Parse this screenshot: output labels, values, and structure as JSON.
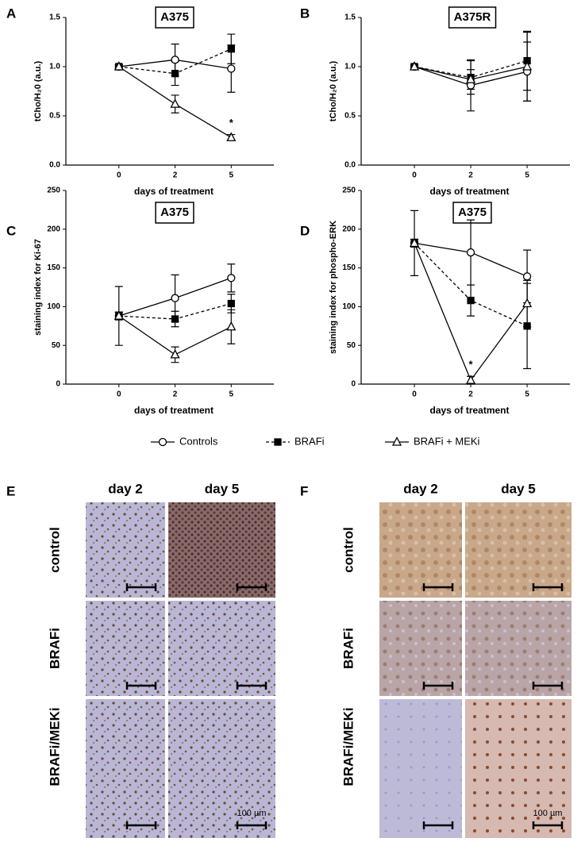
{
  "chart_data": [
    {
      "type": "line",
      "panel": "A",
      "title": "A375",
      "x_label": "days of treatment",
      "y_label": "tCho/H₂0 (a.u.)",
      "categories": [
        "0",
        "2",
        "5"
      ],
      "ylim": [
        0,
        1.5
      ],
      "yticks": [
        {
          "value": 0,
          "label": "0.0"
        },
        0.5,
        {
          "value": 1,
          "label": "1.0"
        },
        1.5
      ],
      "series": [
        {
          "name": "Controls",
          "color": "#000000",
          "marker": "circle",
          "line": "solid",
          "values": [
            1.0,
            1.07,
            0.98
          ],
          "errors": [
            0.02,
            0.16,
            0.24
          ]
        },
        {
          "name": "BRAFi",
          "color": "#000000",
          "marker": "square",
          "line": "dashed",
          "values": [
            1.0,
            0.93,
            1.18
          ],
          "errors": [
            0.02,
            0.12,
            0.15
          ]
        },
        {
          "name": "BRAFi + MEKi",
          "color": "#000000",
          "marker": "triangle",
          "line": "solid",
          "values": [
            1.0,
            0.62,
            0.28
          ],
          "errors": [
            0.02,
            0.09,
            0.03
          ]
        }
      ],
      "annotations": [
        {
          "text": "*",
          "x": "5"
        }
      ]
    },
    {
      "type": "line",
      "panel": "B",
      "title": "A375R",
      "x_label": "days of treatment",
      "y_label": "tCho/H₂0 (a.u.)",
      "categories": [
        "0",
        "2",
        "5"
      ],
      "ylim": [
        0,
        1.5
      ],
      "yticks": [
        {
          "value": 0,
          "label": "0.0"
        },
        0.5,
        {
          "value": 1,
          "label": "1.0"
        },
        1.5
      ],
      "series": [
        {
          "name": "Controls",
          "color": "#000000",
          "marker": "circle",
          "line": "solid",
          "values": [
            1.0,
            0.81,
            0.95
          ],
          "errors": [
            0.02,
            0.26,
            0.3
          ]
        },
        {
          "name": "BRAFi",
          "color": "#000000",
          "marker": "square",
          "line": "dashed",
          "values": [
            1.0,
            0.89,
            1.06
          ],
          "errors": [
            0.02,
            0.17,
            0.3
          ]
        },
        {
          "name": "BRAFi + MEKi",
          "color": "#000000",
          "marker": "triangle",
          "line": "solid",
          "values": [
            1.0,
            0.87,
            1.0
          ],
          "errors": [
            0.02,
            0.1,
            0.35
          ]
        }
      ]
    },
    {
      "type": "line",
      "panel": "C",
      "title": "A375",
      "x_label": "days of treatment",
      "y_label": "staining index for Ki-67",
      "categories": [
        "0",
        "2",
        "5"
      ],
      "ylim": [
        0,
        250
      ],
      "yticks": [
        0,
        50,
        100,
        150,
        200,
        250
      ],
      "series": [
        {
          "name": "Controls",
          "color": "#000000",
          "marker": "circle",
          "line": "solid",
          "values": [
            88,
            111,
            137
          ],
          "errors": [
            38,
            30,
            18
          ]
        },
        {
          "name": "BRAFi",
          "color": "#000000",
          "marker": "square",
          "line": "dashed",
          "values": [
            88,
            84,
            104
          ],
          "errors": [
            5,
            10,
            12
          ]
        },
        {
          "name": "BRAFi + MEKi",
          "color": "#000000",
          "marker": "triangle",
          "line": "solid",
          "values": [
            88,
            38,
            74
          ],
          "errors": [
            5,
            10,
            22
          ]
        }
      ]
    },
    {
      "type": "line",
      "panel": "D",
      "title": "A375",
      "x_label": "days of treatment",
      "y_label": "staining index for phospho-ERK",
      "categories": [
        "0",
        "2",
        "5"
      ],
      "ylim": [
        0,
        250
      ],
      "yticks": [
        0,
        50,
        100,
        150,
        200,
        250
      ],
      "series": [
        {
          "name": "Controls",
          "color": "#000000",
          "marker": "circle",
          "line": "solid",
          "values": [
            182,
            170,
            139
          ],
          "errors": [
            42,
            42,
            34
          ]
        },
        {
          "name": "BRAFi",
          "color": "#000000",
          "marker": "square",
          "line": "dashed",
          "values": [
            182,
            108,
            75
          ],
          "errors": [
            5,
            20,
            55
          ]
        },
        {
          "name": "BRAFi + MEKi",
          "color": "#000000",
          "marker": "triangle",
          "line": "solid",
          "values": [
            182,
            5,
            104
          ],
          "errors": [
            5,
            5,
            30
          ]
        }
      ],
      "annotations": [
        {
          "text": "*",
          "x": "2"
        }
      ]
    }
  ],
  "histology": [
    {
      "panel": "E",
      "columns": [
        "day 2",
        "day 5"
      ],
      "rows": [
        "control",
        "BRAFi",
        "BRAFi/MEKi"
      ],
      "scale": "100 µm"
    },
    {
      "panel": "F",
      "columns": [
        "day 2",
        "day 5"
      ],
      "rows": [
        "control",
        "BRAFi",
        "BRAFi/MEKi"
      ],
      "scale": "100 µm"
    }
  ]
}
